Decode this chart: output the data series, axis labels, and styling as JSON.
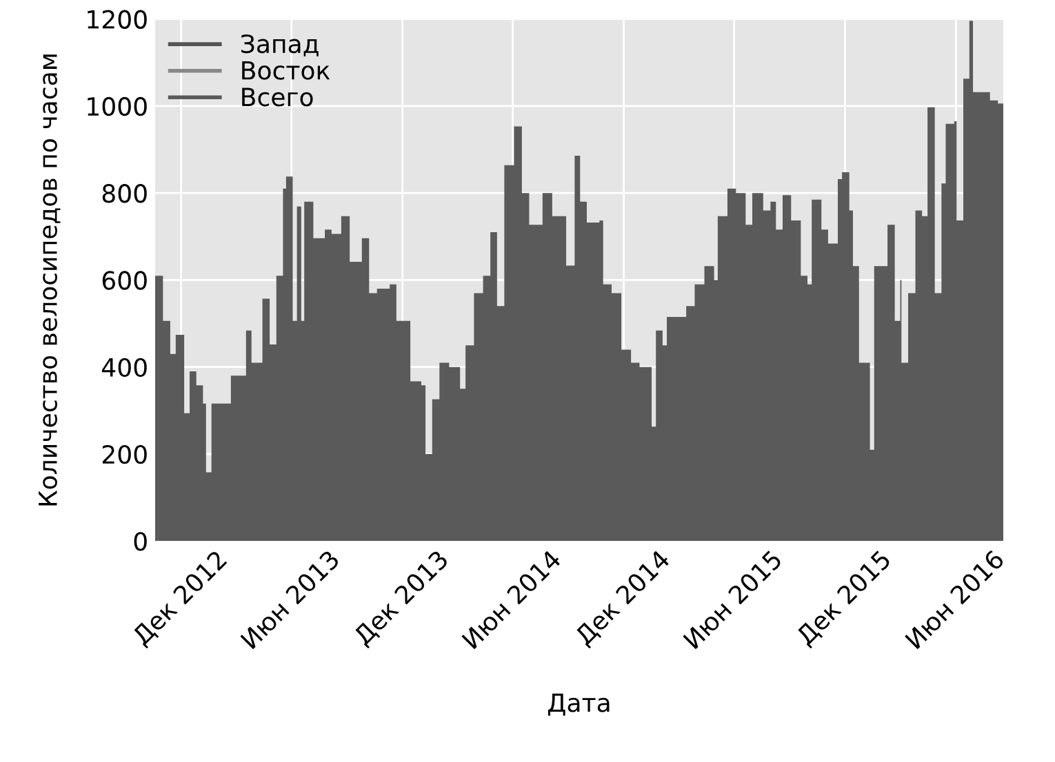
{
  "chart_data": {
    "type": "area",
    "xlabel": "Дата",
    "ylabel": "Количество велосипедов по часам",
    "xlim": [
      "2012-10-19",
      "2016-08-18"
    ],
    "ylim": [
      0,
      1200
    ],
    "yticks": [
      0,
      200,
      400,
      600,
      800,
      1000,
      1200
    ],
    "xticks": [
      {
        "value": "2012-12-01",
        "label": "Дек 2012"
      },
      {
        "value": "2013-06-01",
        "label": "Июн 2013"
      },
      {
        "value": "2013-12-01",
        "label": "Дек 2013"
      },
      {
        "value": "2014-06-01",
        "label": "Июн 2014"
      },
      {
        "value": "2014-12-01",
        "label": "Дек 2014"
      },
      {
        "value": "2015-06-01",
        "label": "Июн 2015"
      },
      {
        "value": "2015-12-01",
        "label": "Дек 2015"
      },
      {
        "value": "2016-06-01",
        "label": "Июн 2016"
      }
    ],
    "grid": true,
    "legend": "top left",
    "series": [
      {
        "name": "Запад",
        "color": "#555555"
      },
      {
        "name": "Восток",
        "color": "#888888"
      },
      {
        "name": "Всего",
        "color": "#5a5a5a",
        "x": [
          "2012-10-19",
          "2012-10-21",
          "2012-11-01",
          "2012-11-13",
          "2012-11-22",
          "2012-12-06",
          "2012-12-15",
          "2012-12-26",
          "2013-01-06",
          "2013-01-11",
          "2013-01-20",
          "2013-02-12",
          "2013-02-21",
          "2013-03-04",
          "2013-03-18",
          "2013-03-27",
          "2013-04-14",
          "2013-04-26",
          "2013-05-07",
          "2013-05-18",
          "2013-05-23",
          "2013-06-03",
          "2013-06-10",
          "2013-06-17",
          "2013-06-22",
          "2013-07-07",
          "2013-07-26",
          "2013-08-06",
          "2013-08-22",
          "2013-09-05",
          "2013-09-25",
          "2013-10-07",
          "2013-10-20",
          "2013-11-10",
          "2013-11-21",
          "2013-12-14",
          "2014-01-01",
          "2014-01-08",
          "2014-01-19",
          "2014-01-31",
          "2014-02-16",
          "2014-03-06",
          "2014-03-15",
          "2014-03-29",
          "2014-04-13",
          "2014-04-25",
          "2014-05-06",
          "2014-05-18",
          "2014-06-03",
          "2014-06-16",
          "2014-06-28",
          "2014-07-20",
          "2014-08-05",
          "2014-08-28",
          "2014-09-11",
          "2014-09-20",
          "2014-10-01",
          "2014-10-22",
          "2014-10-28",
          "2014-11-11",
          "2014-11-27",
          "2014-12-13",
          "2014-12-27",
          "2015-01-16",
          "2015-01-23",
          "2015-02-03",
          "2015-02-10",
          "2015-02-26",
          "2015-03-14",
          "2015-03-28",
          "2015-04-13",
          "2015-04-29",
          "2015-05-05",
          "2015-05-21",
          "2015-06-04",
          "2015-06-20",
          "2015-07-01",
          "2015-07-19",
          "2015-07-31",
          "2015-08-09",
          "2015-08-20",
          "2015-09-03",
          "2015-09-19",
          "2015-09-30",
          "2015-10-07",
          "2015-10-23",
          "2015-11-03",
          "2015-11-19",
          "2015-11-26",
          "2015-12-08",
          "2015-12-14",
          "2015-12-24",
          "2016-01-02",
          "2016-01-11",
          "2016-01-18",
          "2016-02-02",
          "2016-02-09",
          "2016-02-21",
          "2016-03-01",
          "2016-03-03",
          "2016-03-14",
          "2016-03-26",
          "2016-04-06",
          "2016-04-15",
          "2016-04-27",
          "2016-05-08",
          "2016-05-15",
          "2016-05-29",
          "2016-06-02",
          "2016-06-13",
          "2016-06-23",
          "2016-06-29",
          "2016-07-15",
          "2016-07-27",
          "2016-08-09",
          "2016-08-18"
        ],
        "values": [
          610,
          610,
          506,
          430,
          474,
          294,
          390,
          358,
          316,
          158,
          316,
          316,
          380,
          380,
          484,
          410,
          557,
          452,
          610,
          810,
          838,
          506,
          769,
          506,
          780,
          696,
          716,
          706,
          747,
          642,
          696,
          570,
          580,
          590,
          506,
          367,
          358,
          200,
          326,
          410,
          400,
          350,
          450,
          570,
          610,
          710,
          540,
          864,
          953,
          800,
          727,
          800,
          747,
          633,
          886,
          780,
          732,
          737,
          590,
          570,
          440,
          410,
          400,
          263,
          484,
          450,
          515,
          515,
          540,
          590,
          632,
          600,
          747,
          810,
          800,
          727,
          800,
          760,
          780,
          716,
          795,
          737,
          610,
          590,
          785,
          716,
          684,
          832,
          848,
          760,
          632,
          410,
          410,
          210,
          632,
          632,
          727,
          506,
          600,
          410,
          570,
          760,
          747,
          997,
          570,
          822,
          959,
          965,
          737,
          1063,
          1196,
          1032,
          1032,
          1013,
          1006,
          1006
        ]
      }
    ]
  }
}
